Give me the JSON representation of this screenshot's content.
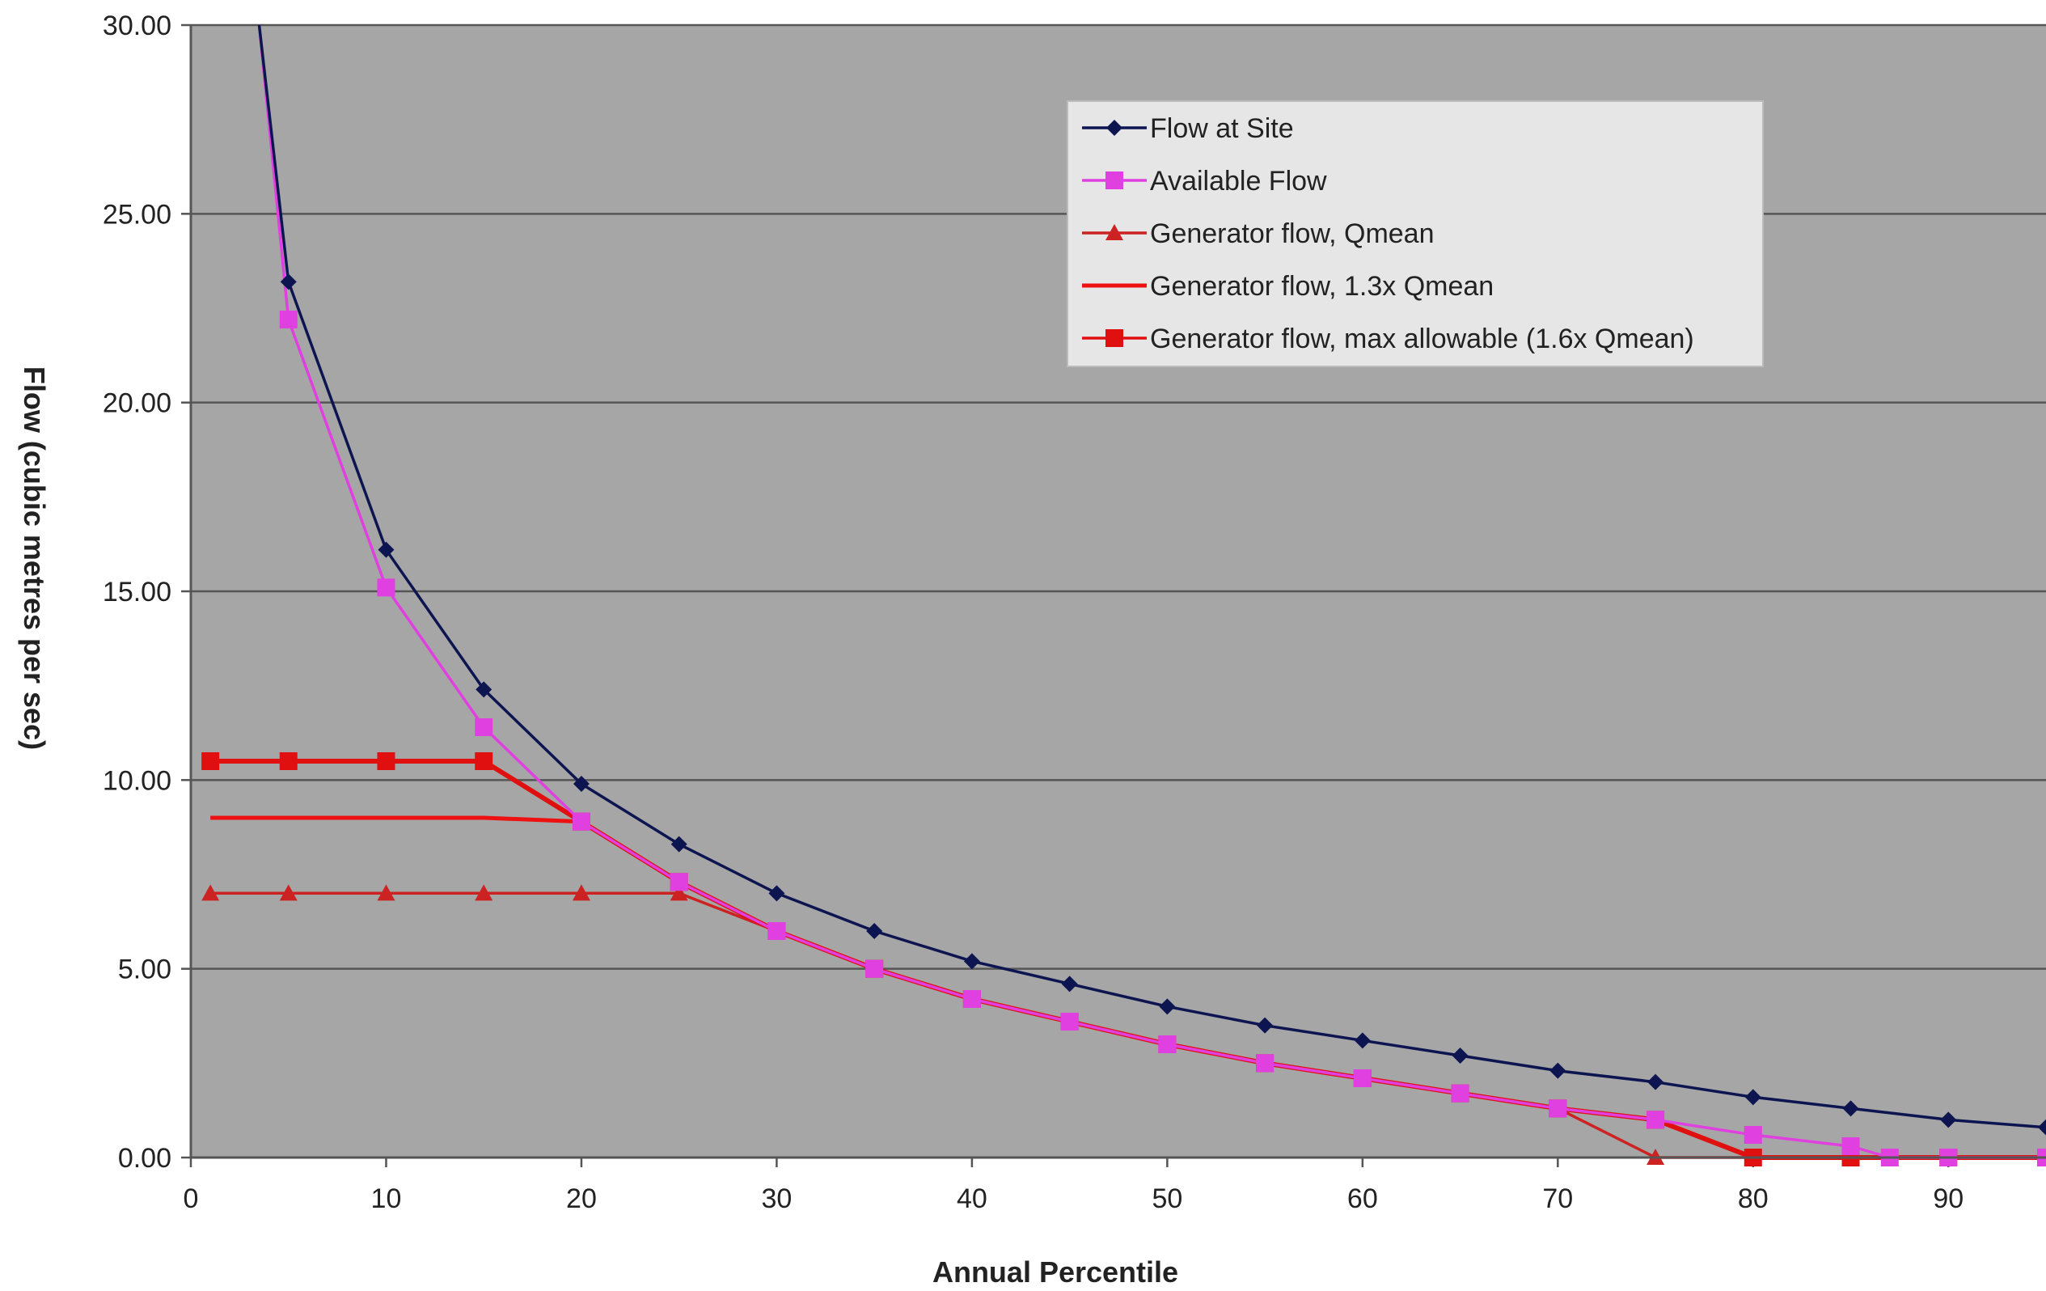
{
  "chart_data": {
    "type": "line",
    "title": "",
    "xlabel": "Annual Percentile",
    "ylabel": "Flow (cubic metres per sec)",
    "xlim": [
      0,
      95
    ],
    "ylim": [
      0,
      30
    ],
    "x_ticks": [
      0,
      10,
      20,
      30,
      40,
      50,
      60,
      70,
      80,
      90
    ],
    "x_tick_labels": [
      "0",
      "10",
      "20",
      "30",
      "40",
      "50",
      "60",
      "70",
      "80",
      "90"
    ],
    "y_ticks": [
      0,
      5,
      10,
      15,
      20,
      25,
      30
    ],
    "y_tick_labels": [
      "0.00",
      "5.00",
      "10.00",
      "15.00",
      "20.00",
      "25.00",
      "30.00"
    ],
    "grid": "horizontal",
    "legend_position": "top-right",
    "plot_background": "#a6a6a6",
    "series": [
      {
        "name": "Flow at Site",
        "color": "#0d1550",
        "marker": "diamond",
        "x": [
          3.5,
          5,
          10,
          15,
          20,
          25,
          30,
          35,
          40,
          45,
          50,
          55,
          60,
          65,
          70,
          75,
          80,
          85,
          90,
          95
        ],
        "y": [
          30,
          23.2,
          16.1,
          12.4,
          9.9,
          8.3,
          7.0,
          6.0,
          5.2,
          4.6,
          4.0,
          3.5,
          3.1,
          2.7,
          2.3,
          2.0,
          1.6,
          1.3,
          1.0,
          0.8
        ]
      },
      {
        "name": "Available Flow",
        "color": "#e040e0",
        "marker": "square",
        "x": [
          3.5,
          5,
          10,
          15,
          20,
          25,
          30,
          35,
          40,
          45,
          50,
          55,
          60,
          65,
          70,
          75,
          80,
          85,
          87,
          90,
          95
        ],
        "y": [
          30,
          22.2,
          15.1,
          11.4,
          8.9,
          7.3,
          6.0,
          5.0,
          4.2,
          3.6,
          3.0,
          2.5,
          2.1,
          1.7,
          1.3,
          1.0,
          0.6,
          0.3,
          0,
          0,
          0
        ]
      },
      {
        "name": "Generator flow, Qmean",
        "color": "#cc2222",
        "marker": "triangle",
        "x": [
          1,
          5,
          10,
          15,
          20,
          25,
          30,
          35,
          40,
          45,
          50,
          55,
          60,
          65,
          70,
          75,
          80,
          85,
          90,
          95
        ],
        "y": [
          7.0,
          7.0,
          7.0,
          7.0,
          7.0,
          7.0,
          6.0,
          5.0,
          4.2,
          3.6,
          3.0,
          2.5,
          2.1,
          1.7,
          1.3,
          0,
          0,
          0,
          0,
          0
        ]
      },
      {
        "name": "Generator flow, 1.3x Qmean",
        "color": "#ee1111",
        "marker": "none",
        "x": [
          1,
          15,
          20,
          25,
          30,
          35,
          40,
          45,
          50,
          55,
          60,
          65,
          70,
          75,
          80,
          85,
          90,
          95
        ],
        "y": [
          9.0,
          9.0,
          8.9,
          7.3,
          6.0,
          5.0,
          4.2,
          3.6,
          3.0,
          2.5,
          2.1,
          1.7,
          1.3,
          1.0,
          0,
          0,
          0,
          0
        ]
      },
      {
        "name": "Generator flow, max allowable (1.6x Qmean)",
        "color": "#e01010",
        "marker": "square",
        "x": [
          1,
          5,
          10,
          15,
          20,
          25,
          30,
          35,
          40,
          45,
          50,
          55,
          60,
          65,
          70,
          75,
          80,
          85,
          90,
          95
        ],
        "y": [
          10.5,
          10.5,
          10.5,
          10.5,
          8.9,
          7.3,
          6.0,
          5.0,
          4.2,
          3.6,
          3.0,
          2.5,
          2.1,
          1.7,
          1.3,
          1.0,
          0,
          0,
          0,
          0
        ]
      }
    ]
  }
}
